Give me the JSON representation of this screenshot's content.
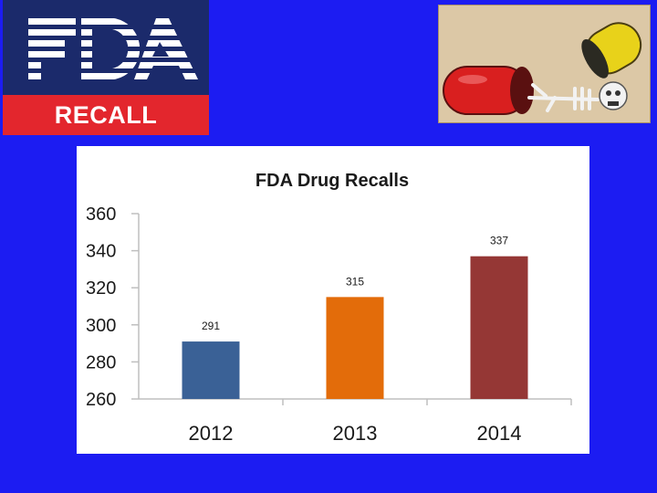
{
  "logo": {
    "wordmark": "FDA",
    "recall_label": "RECALL"
  },
  "colors": {
    "background": "#1c1cf2",
    "logo_blue": "#1b2a6b",
    "logo_red": "#e3262d"
  },
  "pill_image": {
    "icon": "pill-capsule-skeleton-illustration"
  },
  "chart_data": {
    "type": "bar",
    "title": "FDA Drug Recalls",
    "categories": [
      "2012",
      "2013",
      "2014"
    ],
    "values": [
      291,
      315,
      337
    ],
    "data_labels": [
      "291",
      "315",
      "337"
    ],
    "colors": [
      "#3a6196",
      "#e36c0a",
      "#953735"
    ],
    "yticks": [
      260,
      280,
      300,
      320,
      340,
      360
    ],
    "ytick_labels": [
      "260",
      "280",
      "300",
      "320",
      "340",
      "360"
    ],
    "ylim": [
      260,
      360
    ],
    "xlabel": "",
    "ylabel": "",
    "grid": false,
    "legend": "none"
  }
}
